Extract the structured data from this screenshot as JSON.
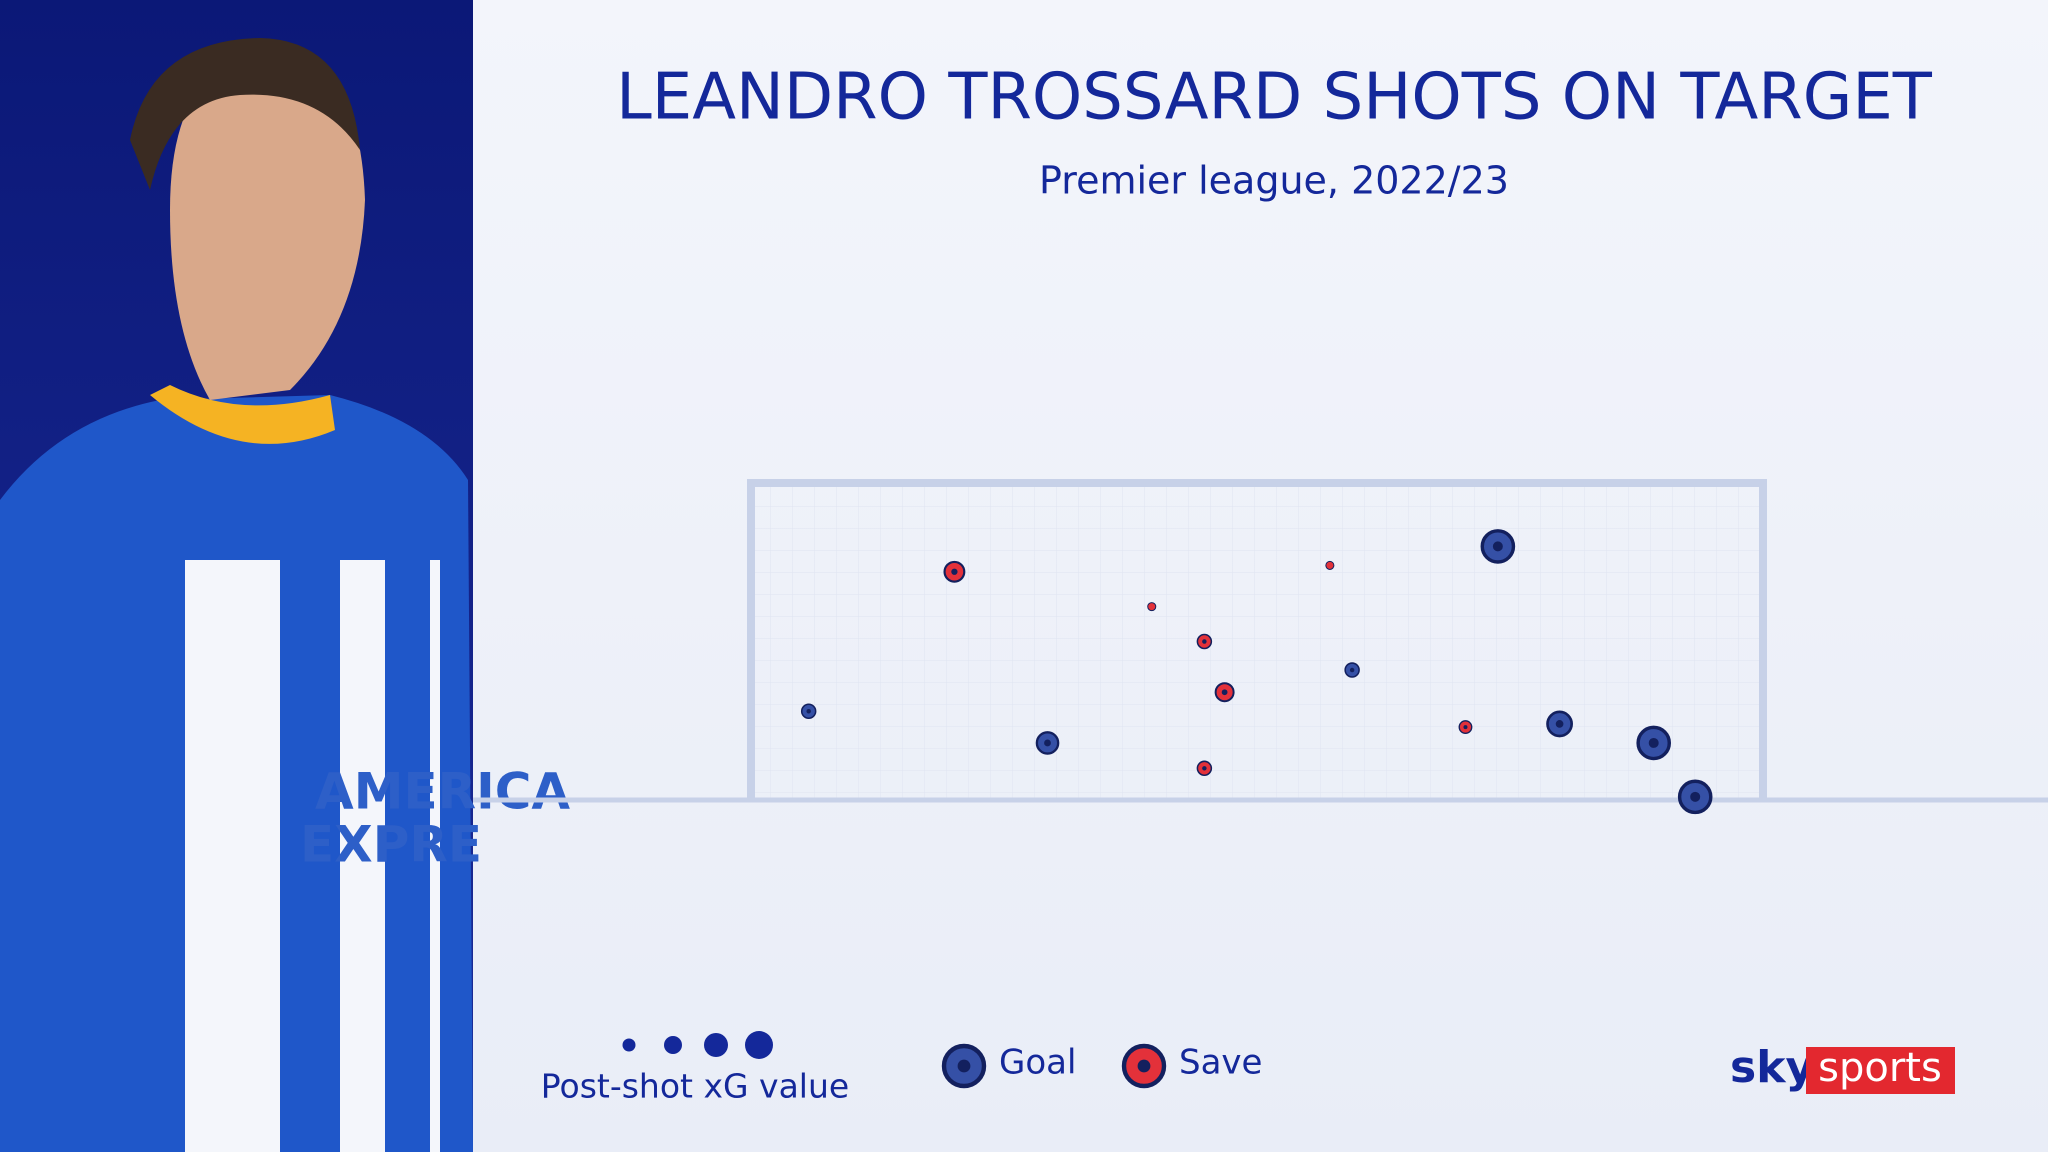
{
  "chart_data": {
    "type": "scatter",
    "title": "LEANDRO TROSSARD SHOTS ON TARGET",
    "subtitle": "Premier league, 2022/23",
    "size_legend_label": "Post-shot xG value",
    "xlim": [
      0,
      1
    ],
    "ylim": [
      0,
      1
    ],
    "series": [
      {
        "name": "Goal",
        "color": "#3550a6",
        "x": [
          0.738,
          0.057,
          0.293,
          0.594,
          0.799,
          0.892,
          0.933
        ],
        "values": [
          0.8,
          0.28,
          0.18,
          0.41,
          0.24,
          0.18,
          0.01
        ],
        "sizes": [
          0.75,
          0.15,
          0.35,
          0.15,
          0.45,
          0.75,
          0.75
        ]
      },
      {
        "name": "Save",
        "color": "#e3313a",
        "x": [
          0.201,
          0.396,
          0.572,
          0.448,
          0.468,
          0.706,
          0.448
        ],
        "values": [
          0.72,
          0.61,
          0.74,
          0.5,
          0.34,
          0.23,
          0.1
        ],
        "sizes": [
          0.3,
          0.05,
          0.05,
          0.15,
          0.25,
          0.12,
          0.15
        ]
      }
    ],
    "logo": {
      "left": "sky",
      "right": "sports"
    }
  }
}
